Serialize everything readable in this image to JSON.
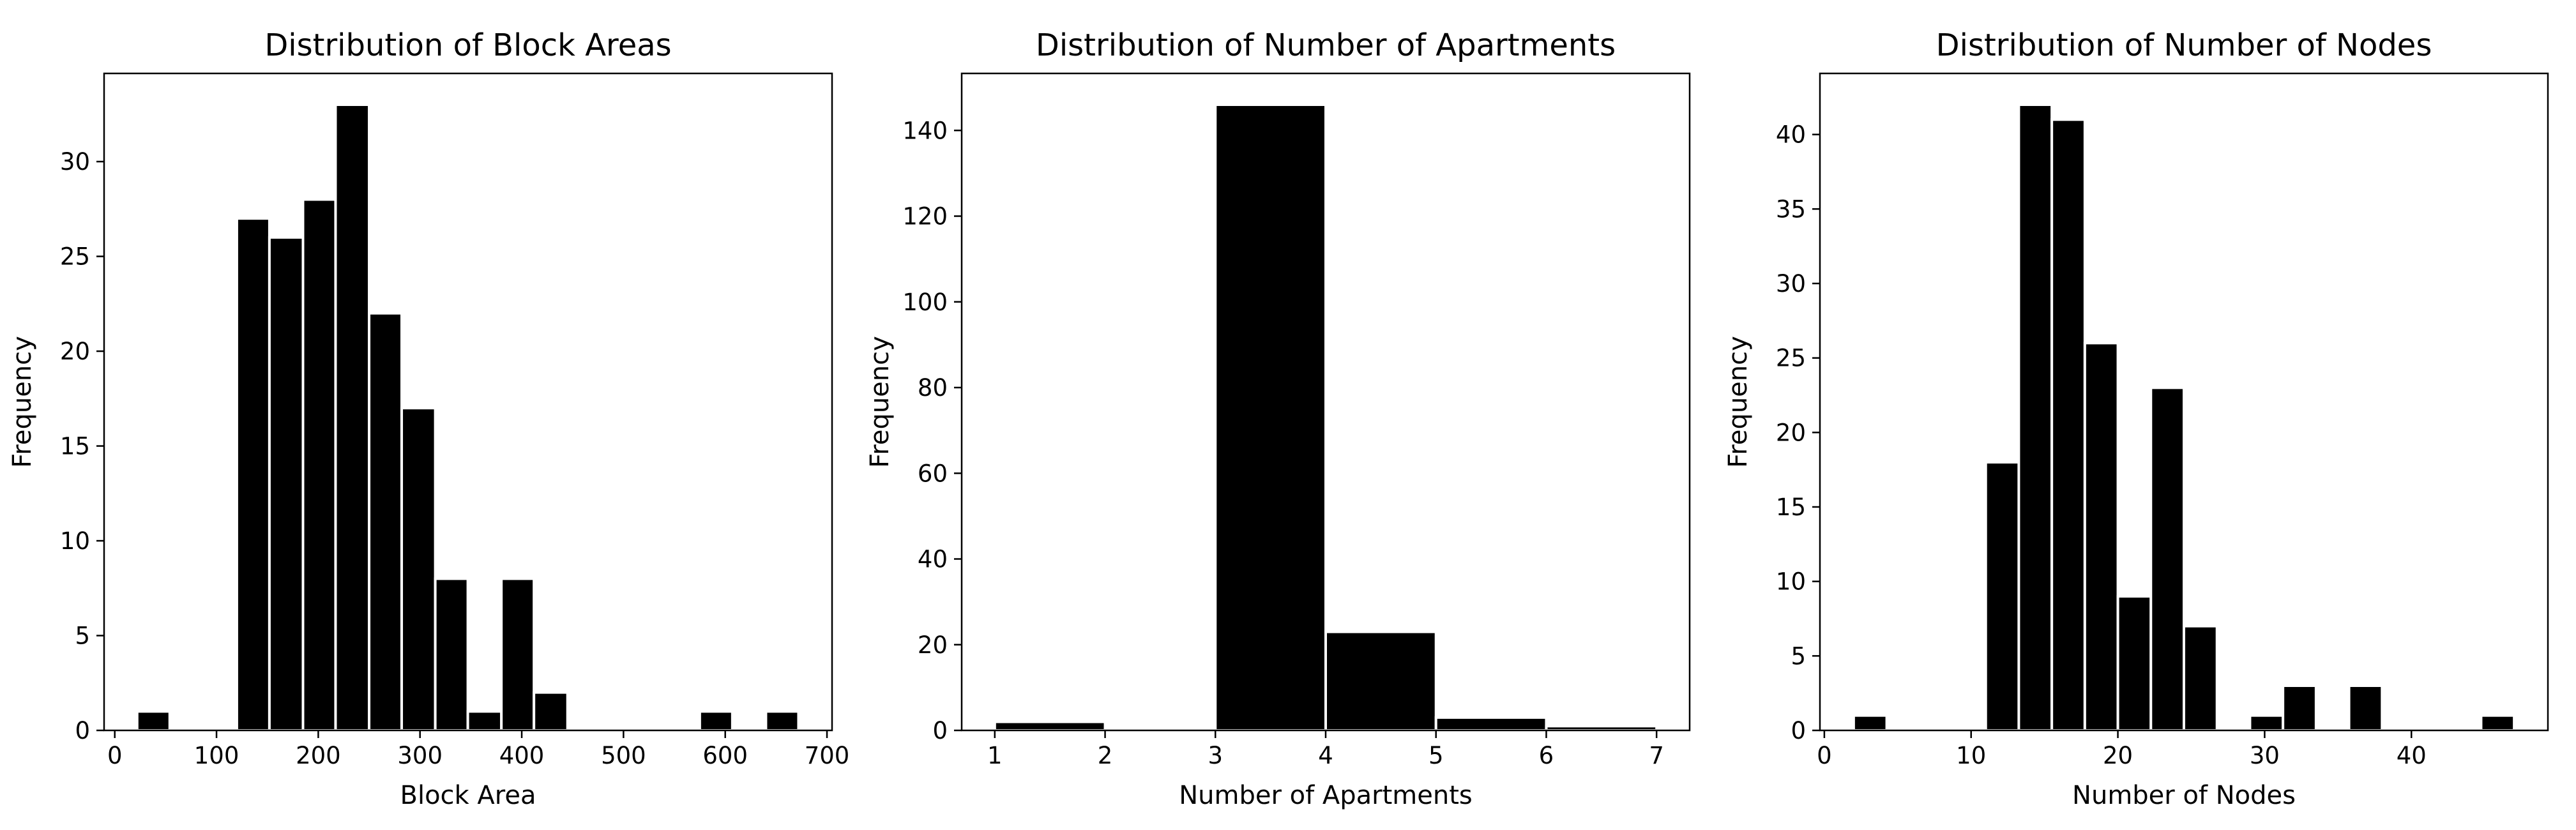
{
  "chart_data": [
    {
      "type": "bar",
      "title": "Distribution of Block Areas",
      "xlabel": "Block Area",
      "ylabel": "Frequency",
      "xlim": [
        -10.5,
        705
      ],
      "ylim": [
        0,
        34.65
      ],
      "xticks": [
        0,
        100,
        200,
        300,
        400,
        500,
        600,
        700
      ],
      "yticks": [
        0,
        5,
        10,
        15,
        20,
        25,
        30
      ],
      "bins": [
        {
          "start": 22,
          "end": 54,
          "count": 1
        },
        {
          "start": 54,
          "end": 87,
          "count": 0
        },
        {
          "start": 87,
          "end": 120,
          "count": 0
        },
        {
          "start": 120,
          "end": 152,
          "count": 27
        },
        {
          "start": 152,
          "end": 185,
          "count": 26
        },
        {
          "start": 185,
          "end": 217,
          "count": 28
        },
        {
          "start": 217,
          "end": 250,
          "count": 33
        },
        {
          "start": 250,
          "end": 282,
          "count": 22
        },
        {
          "start": 282,
          "end": 315,
          "count": 17
        },
        {
          "start": 315,
          "end": 347,
          "count": 8
        },
        {
          "start": 347,
          "end": 380,
          "count": 1
        },
        {
          "start": 380,
          "end": 412,
          "count": 8
        },
        {
          "start": 412,
          "end": 445,
          "count": 2
        },
        {
          "start": 445,
          "end": 477,
          "count": 0
        },
        {
          "start": 477,
          "end": 510,
          "count": 0
        },
        {
          "start": 510,
          "end": 542,
          "count": 0
        },
        {
          "start": 542,
          "end": 575,
          "count": 0
        },
        {
          "start": 575,
          "end": 607,
          "count": 1
        },
        {
          "start": 607,
          "end": 640,
          "count": 0
        },
        {
          "start": 640,
          "end": 672,
          "count": 1
        }
      ],
      "color": "#000000",
      "edgecolor": "#ffffff",
      "grid": false
    },
    {
      "type": "bar",
      "title": "Distribution of Number of Apartments",
      "xlabel": "Number of Apartments",
      "ylabel": "Frequency",
      "xlim": [
        0.7,
        7.3
      ],
      "ylim": [
        0,
        153.3
      ],
      "xticks": [
        1,
        2,
        3,
        4,
        5,
        6,
        7
      ],
      "yticks": [
        0,
        20,
        40,
        60,
        80,
        100,
        120,
        140
      ],
      "bins": [
        {
          "start": 1,
          "end": 2,
          "count": 2
        },
        {
          "start": 2,
          "end": 3,
          "count": 0
        },
        {
          "start": 3,
          "end": 4,
          "count": 146
        },
        {
          "start": 4,
          "end": 5,
          "count": 23
        },
        {
          "start": 5,
          "end": 6,
          "count": 3
        },
        {
          "start": 6,
          "end": 7,
          "count": 1
        }
      ],
      "color": "#000000",
      "edgecolor": "#ffffff",
      "grid": false
    },
    {
      "type": "bar",
      "title": "Distribution of Number of Nodes",
      "xlabel": "Number of Nodes",
      "ylabel": "Frequency",
      "xlim": [
        -0.3,
        49.3
      ],
      "ylim": [
        0,
        44.1
      ],
      "xticks": [
        0,
        10,
        20,
        30,
        40
      ],
      "yticks": [
        0,
        5,
        10,
        15,
        20,
        25,
        30,
        35,
        40
      ],
      "bins": [
        {
          "start": 2,
          "end": 4.25,
          "count": 1
        },
        {
          "start": 4.25,
          "end": 6.5,
          "count": 0
        },
        {
          "start": 6.5,
          "end": 8.75,
          "count": 0
        },
        {
          "start": 8.75,
          "end": 11,
          "count": 0
        },
        {
          "start": 11,
          "end": 13.25,
          "count": 18
        },
        {
          "start": 13.25,
          "end": 15.5,
          "count": 42
        },
        {
          "start": 15.5,
          "end": 17.75,
          "count": 41
        },
        {
          "start": 17.75,
          "end": 20,
          "count": 26
        },
        {
          "start": 20,
          "end": 22.25,
          "count": 9
        },
        {
          "start": 22.25,
          "end": 24.5,
          "count": 23
        },
        {
          "start": 24.5,
          "end": 26.75,
          "count": 7
        },
        {
          "start": 26.75,
          "end": 29,
          "count": 0
        },
        {
          "start": 29,
          "end": 31.25,
          "count": 1
        },
        {
          "start": 31.25,
          "end": 33.5,
          "count": 3
        },
        {
          "start": 33.5,
          "end": 35.75,
          "count": 0
        },
        {
          "start": 35.75,
          "end": 38,
          "count": 3
        },
        {
          "start": 38,
          "end": 40.25,
          "count": 0
        },
        {
          "start": 40.25,
          "end": 42.5,
          "count": 0
        },
        {
          "start": 42.5,
          "end": 44.75,
          "count": 0
        },
        {
          "start": 44.75,
          "end": 47,
          "count": 1
        }
      ],
      "color": "#000000",
      "edgecolor": "#ffffff",
      "grid": false
    }
  ]
}
